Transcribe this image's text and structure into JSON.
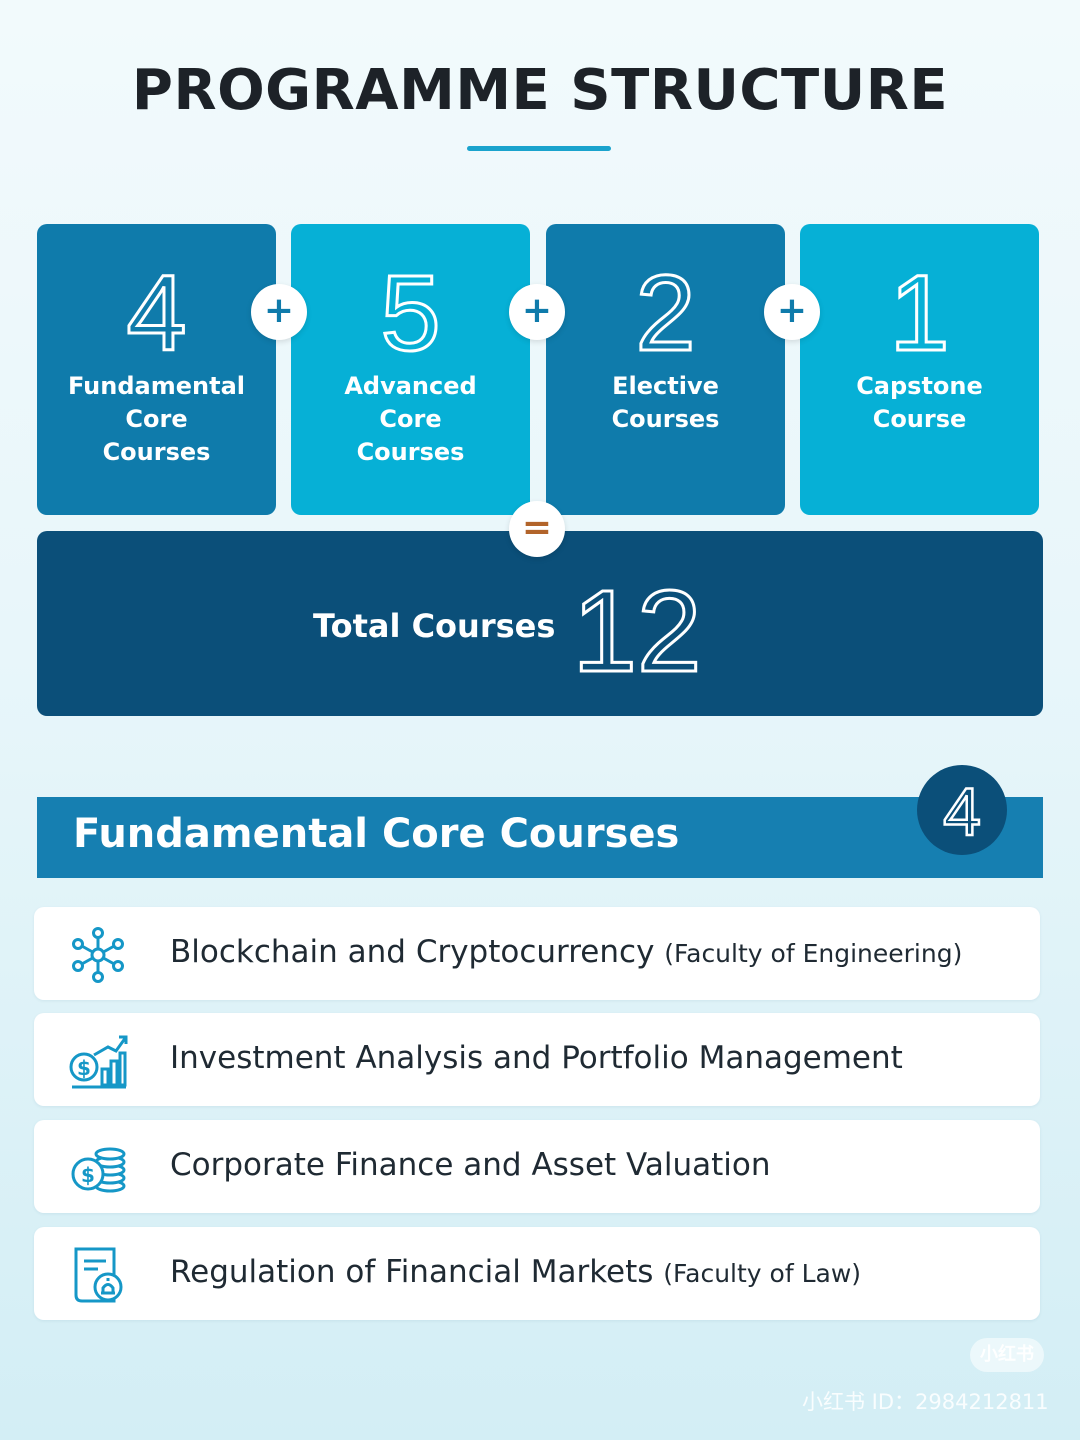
{
  "title": "PROGRAMME STRUCTURE",
  "components": [
    {
      "number": "4",
      "label": "Fundamental\nCore\nCourses"
    },
    {
      "number": "5",
      "label": "Advanced\nCore\nCourses"
    },
    {
      "number": "2",
      "label": "Elective\nCourses"
    },
    {
      "number": "1",
      "label": "Capstone\nCourse"
    }
  ],
  "operators": {
    "plus": "+",
    "equals": "="
  },
  "total": {
    "label": "Total Courses",
    "number": "12"
  },
  "section": {
    "title": "Fundamental Core Courses",
    "count": "4",
    "courses": [
      {
        "name": "Blockchain and Cryptocurrency",
        "note": "(Faculty of Engineering)",
        "icon": "network-nodes-icon"
      },
      {
        "name": "Investment Analysis and Portfolio Management",
        "note": "",
        "icon": "growth-chart-icon"
      },
      {
        "name": "Corporate Finance and Asset Valuation",
        "note": "",
        "icon": "coin-stack-icon"
      },
      {
        "name": "Regulation of Financial Markets",
        "note": "(Faculty of Law)",
        "icon": "regulation-document-icon"
      }
    ]
  },
  "watermark": {
    "badge": "小红书",
    "id_text": "小红书 ID：2984212811"
  },
  "colors": {
    "dark_blue": "#0f7bab",
    "light_blue": "#06b0d6",
    "navy": "#0b4f79",
    "section_blue": "#167fb1",
    "accent_underline": "#1aa3cd",
    "equals_color": "#b2642a"
  }
}
